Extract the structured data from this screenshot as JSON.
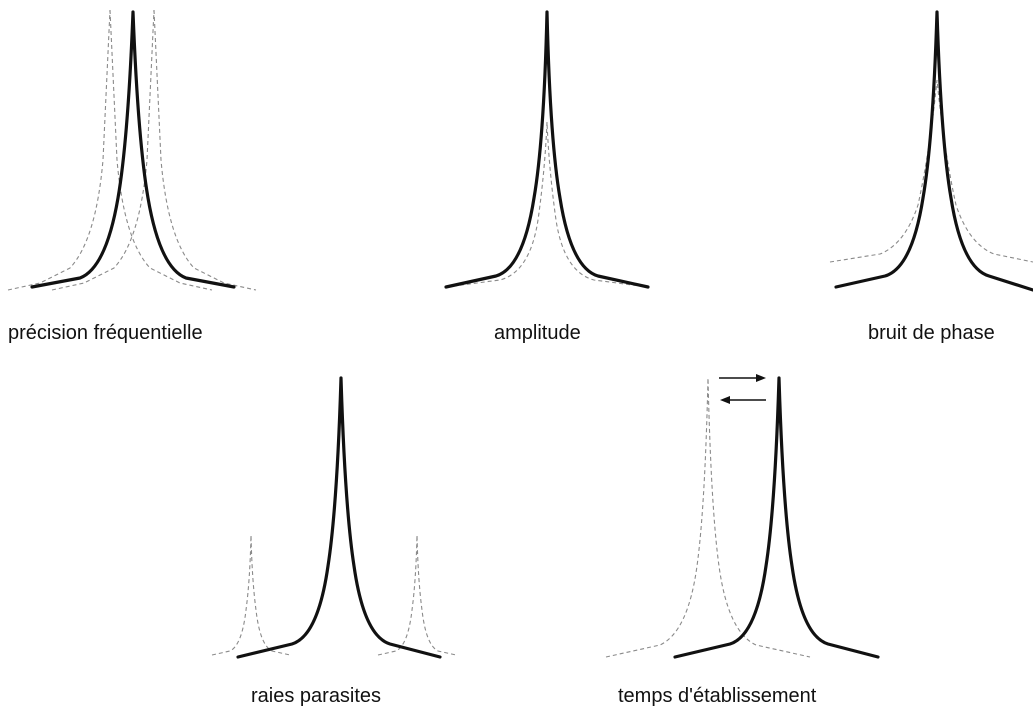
{
  "panels": [
    {
      "id": "precision",
      "caption": "précision fréquentielle"
    },
    {
      "id": "amplitude",
      "caption": "amplitude"
    },
    {
      "id": "phase-noise",
      "caption": "bruit de phase"
    },
    {
      "id": "spurs",
      "caption": "raies parasites"
    },
    {
      "id": "settling",
      "caption": "temps d'établissement"
    }
  ],
  "colors": {
    "main_curve": "#111111",
    "alternate_curve": "#8a8a8a",
    "text": "#111111",
    "background": "#ffffff"
  },
  "icons": {
    "settling_arrows": [
      "arrow-right-icon",
      "arrow-left-icon"
    ]
  }
}
